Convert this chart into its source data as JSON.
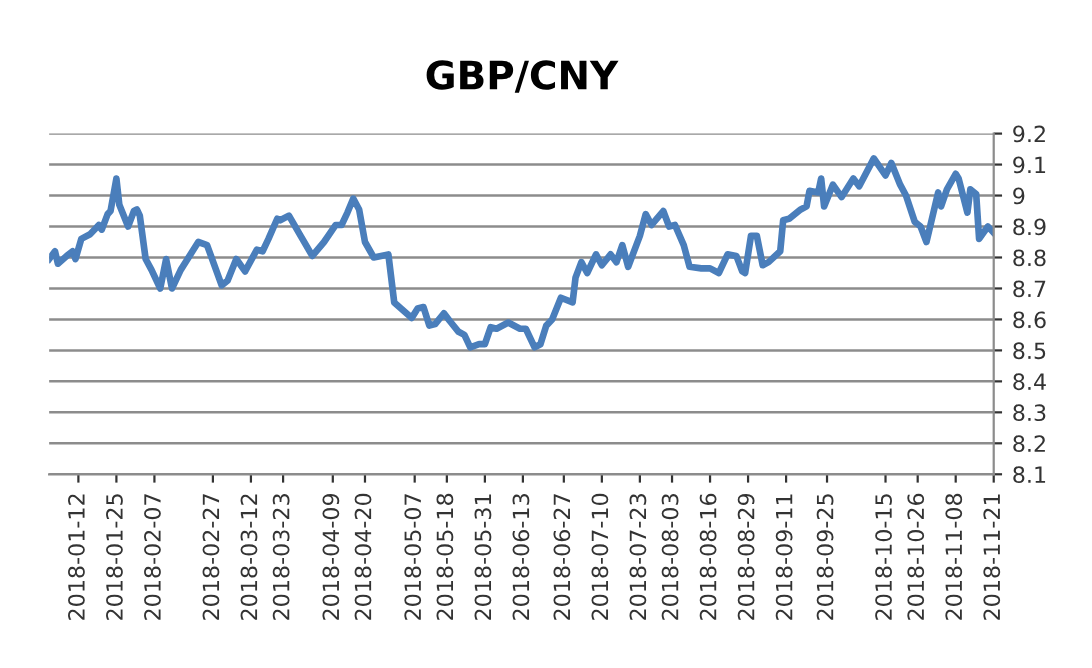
{
  "chart_data": {
    "type": "line",
    "title": "GBP/CNY",
    "series": [
      {
        "color": "#4a7ebb",
        "x": [
          "2018-01-02",
          "2018-01-04",
          "2018-01-05",
          "2018-01-08",
          "2018-01-10",
          "2018-01-11",
          "2018-01-13",
          "2018-01-16",
          "2018-01-19",
          "2018-01-20",
          "2018-01-22",
          "2018-01-23",
          "2018-01-25",
          "2018-01-26",
          "2018-01-29",
          "2018-01-31",
          "2018-02-01",
          "2018-02-02",
          "2018-02-04",
          "2018-02-06",
          "2018-02-09",
          "2018-02-11",
          "2018-02-13",
          "2018-02-16",
          "2018-02-22",
          "2018-02-25",
          "2018-03-02",
          "2018-03-04",
          "2018-03-07",
          "2018-03-10",
          "2018-03-14",
          "2018-03-16",
          "2018-03-18",
          "2018-03-21",
          "2018-03-22",
          "2018-03-25",
          "2018-03-29",
          "2018-04-02",
          "2018-04-06",
          "2018-04-10",
          "2018-04-12",
          "2018-04-14",
          "2018-04-16",
          "2018-04-18",
          "2018-04-20",
          "2018-04-23",
          "2018-04-28",
          "2018-04-30",
          "2018-05-06",
          "2018-05-08",
          "2018-05-10",
          "2018-05-12",
          "2018-05-14",
          "2018-05-17",
          "2018-05-19",
          "2018-05-22",
          "2018-05-24",
          "2018-05-26",
          "2018-05-29",
          "2018-05-31",
          "2018-06-02",
          "2018-06-04",
          "2018-06-08",
          "2018-06-12",
          "2018-06-14",
          "2018-06-17",
          "2018-06-19",
          "2018-06-21",
          "2018-06-23",
          "2018-06-26",
          "2018-06-30",
          "2018-07-01",
          "2018-07-03",
          "2018-07-05",
          "2018-07-08",
          "2018-07-10",
          "2018-07-13",
          "2018-07-15",
          "2018-07-17",
          "2018-07-19",
          "2018-07-23",
          "2018-07-25",
          "2018-07-27",
          "2018-07-31",
          "2018-08-02",
          "2018-08-04",
          "2018-08-07",
          "2018-08-09",
          "2018-08-13",
          "2018-08-16",
          "2018-08-19",
          "2018-08-22",
          "2018-08-25",
          "2018-08-27",
          "2018-08-28",
          "2018-08-30",
          "2018-09-01",
          "2018-09-03",
          "2018-09-05",
          "2018-09-09",
          "2018-09-10",
          "2018-09-12",
          "2018-09-16",
          "2018-09-18",
          "2018-09-19",
          "2018-09-22",
          "2018-09-23",
          "2018-09-24",
          "2018-09-27",
          "2018-09-30",
          "2018-10-04",
          "2018-10-06",
          "2018-10-11",
          "2018-10-15",
          "2018-10-17",
          "2018-10-20",
          "2018-10-22",
          "2018-10-25",
          "2018-10-27",
          "2018-10-29",
          "2018-11-02",
          "2018-11-03",
          "2018-11-05",
          "2018-11-08",
          "2018-11-09",
          "2018-11-12",
          "2018-11-13",
          "2018-11-15",
          "2018-11-16",
          "2018-11-19",
          "2018-11-21"
        ],
        "values": [
          8.795,
          8.82,
          8.78,
          8.805,
          8.82,
          8.795,
          8.86,
          8.875,
          8.905,
          8.89,
          8.94,
          8.95,
          9.055,
          8.97,
          8.9,
          8.95,
          8.955,
          8.935,
          8.795,
          8.76,
          8.7,
          8.795,
          8.7,
          8.76,
          8.85,
          8.84,
          8.71,
          8.725,
          8.795,
          8.755,
          8.825,
          8.82,
          8.86,
          8.925,
          8.92,
          8.935,
          8.87,
          8.805,
          8.85,
          8.905,
          8.905,
          8.945,
          8.99,
          8.955,
          8.85,
          8.8,
          8.81,
          8.655,
          8.605,
          8.635,
          8.64,
          8.58,
          8.585,
          8.62,
          8.595,
          8.56,
          8.55,
          8.51,
          8.52,
          8.52,
          8.575,
          8.57,
          8.59,
          8.57,
          8.57,
          8.51,
          8.52,
          8.58,
          8.6,
          8.67,
          8.655,
          8.735,
          8.785,
          8.75,
          8.81,
          8.775,
          8.81,
          8.785,
          8.84,
          8.77,
          8.87,
          8.94,
          8.905,
          8.95,
          8.9,
          8.905,
          8.84,
          8.77,
          8.765,
          8.765,
          8.75,
          8.81,
          8.805,
          8.755,
          8.75,
          8.87,
          8.87,
          8.775,
          8.785,
          8.82,
          8.92,
          8.925,
          8.955,
          8.965,
          9.015,
          9.01,
          9.055,
          8.965,
          9.035,
          8.995,
          9.055,
          9.03,
          9.12,
          9.065,
          9.105,
          9.035,
          9.0,
          8.915,
          8.9,
          8.85,
          9.01,
          8.965,
          9.02,
          9.07,
          9.055,
          8.945,
          9.02,
          9.005,
          8.86,
          8.9,
          8.88
        ]
      }
    ],
    "xlim": [
      "2018-01-02",
      "2018-11-21"
    ],
    "xticks": [
      "2018-01-12",
      "2018-01-25",
      "2018-02-07",
      "2018-02-27",
      "2018-03-12",
      "2018-03-23",
      "2018-04-09",
      "2018-04-20",
      "2018-05-07",
      "2018-05-18",
      "2018-05-31",
      "2018-06-13",
      "2018-06-27",
      "2018-07-10",
      "2018-07-23",
      "2018-08-03",
      "2018-08-16",
      "2018-08-29",
      "2018-09-11",
      "2018-09-25",
      "2018-10-15",
      "2018-10-26",
      "2018-11-08",
      "2018-11-21"
    ],
    "ylim": [
      8.1,
      9.2
    ],
    "yticks": [
      8.1,
      8.2,
      8.3,
      8.4,
      8.5,
      8.6,
      8.7,
      8.8,
      8.9,
      9,
      9.1,
      9.2
    ],
    "grid": "y",
    "legend": false,
    "marker": "none",
    "line_style": "solid"
  }
}
